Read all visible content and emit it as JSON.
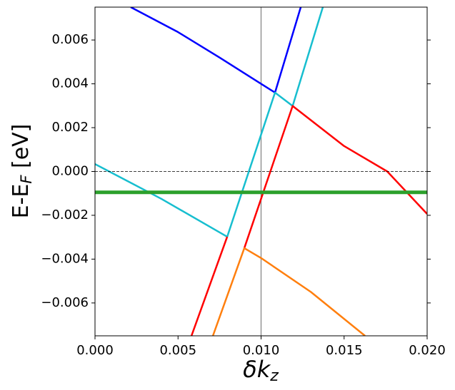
{
  "chart_data": {
    "type": "line",
    "xlabel": [
      "δk",
      "z"
    ],
    "ylabel": [
      "E-E",
      "F",
      " [eV]"
    ],
    "xlim": [
      0,
      0.02
    ],
    "ylim": [
      -0.0075,
      0.0075
    ],
    "xticks": [
      {
        "value": 0,
        "label": "0.000"
      },
      {
        "value": 0.005,
        "label": "0.005"
      },
      {
        "value": 0.01,
        "label": "0.010"
      },
      {
        "value": 0.015,
        "label": "0.015"
      },
      {
        "value": 0.02,
        "label": "0.020"
      }
    ],
    "yticks": [
      {
        "value": -0.006,
        "label": "−0.006"
      },
      {
        "value": -0.004,
        "label": "−0.004"
      },
      {
        "value": -0.002,
        "label": "−0.002"
      },
      {
        "value": 0,
        "label": "0.000"
      },
      {
        "value": 0.002,
        "label": "0.002"
      },
      {
        "value": 0.004,
        "label": "0.004"
      },
      {
        "value": 0.006,
        "label": "0.006"
      }
    ],
    "hline": 0,
    "vline": 0.01,
    "series": [
      {
        "color": "#0000ff",
        "width": 2.5,
        "x": [
          0.00215,
          0.005,
          0.0075,
          0.01,
          0.01084,
          0.01239
        ],
        "values": [
          0.0075,
          0.00636,
          0.0052,
          0.004,
          0.0036,
          0.0075
        ]
      },
      {
        "color": "#17becf",
        "width": 2.5,
        "x": [
          0,
          0.004,
          0.00796,
          0.01084,
          0.0119,
          0.01372
        ],
        "values": [
          0.00034,
          -0.00125,
          -0.00298,
          0.0036,
          0.00299,
          0.0075
        ]
      },
      {
        "color": "#ff0000",
        "width": 2.5,
        "x": [
          0.00581,
          0.00796,
          null,
          0.00899,
          0.0119,
          0.015,
          0.0176,
          0.02
        ],
        "values": [
          -0.0075,
          -0.00298,
          null,
          -0.0035,
          0.00299,
          0.00116,
          0,
          -0.00194
        ]
      },
      {
        "color": "#ff7f0e",
        "width": 2.5,
        "x": [
          0.0071,
          0.00899,
          0.01,
          0.013,
          0.01626
        ],
        "values": [
          -0.0075,
          -0.0035,
          -0.00395,
          -0.0055,
          -0.0075
        ]
      },
      {
        "color": "#2ca02c",
        "width": 5,
        "x": [
          0,
          0.02
        ],
        "values": [
          -0.00095,
          -0.00095
        ]
      }
    ]
  }
}
